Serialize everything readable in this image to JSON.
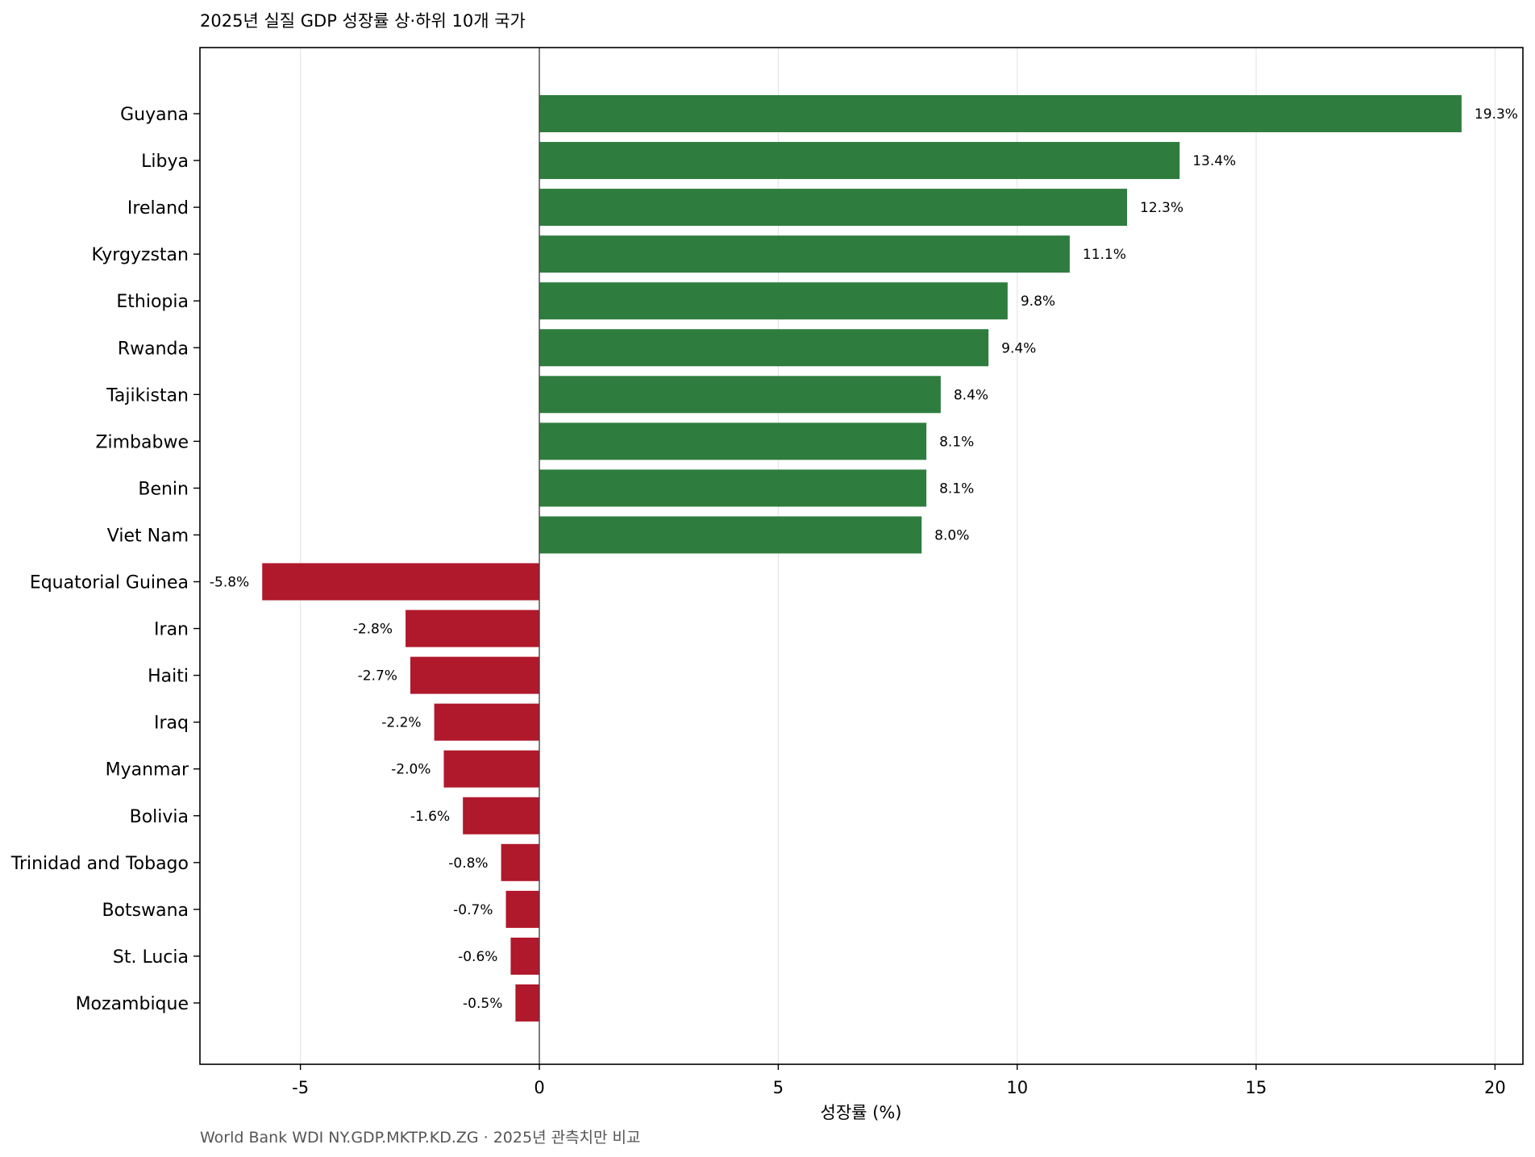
{
  "chart_data": {
    "type": "bar",
    "orientation": "horizontal",
    "title": "2025년 실질 GDP 성장률 상·하위 10개 국가",
    "xlabel": "성장률 (%)",
    "ylabel": "",
    "xlim": [
      -7,
      20.6
    ],
    "xticks": [
      -5,
      0,
      5,
      10,
      15,
      20
    ],
    "xtick_labels": [
      "-5",
      "0",
      "5",
      "10",
      "15",
      "20"
    ],
    "grid": "vertical",
    "source": "World Bank WDI NY.GDP.MKTP.KD.ZG · 2025년 관측치만 비교",
    "colors": {
      "positive": "#2e7d3e",
      "negative": "#b0182c",
      "grid": "#e6e6e6",
      "zero_line": "#444444"
    },
    "categories": [
      "Guyana",
      "Libya",
      "Ireland",
      "Kyrgyzstan",
      "Ethiopia",
      "Rwanda",
      "Tajikistan",
      "Zimbabwe",
      "Benin",
      "Viet Nam",
      "Equatorial Guinea",
      "Iran",
      "Haiti",
      "Iraq",
      "Myanmar",
      "Bolivia",
      "Trinidad and Tobago",
      "Botswana",
      "St. Lucia",
      "Mozambique"
    ],
    "values": [
      19.3,
      13.4,
      12.3,
      11.1,
      9.8,
      9.4,
      8.4,
      8.1,
      8.1,
      8.0,
      -5.8,
      -2.8,
      -2.7,
      -2.2,
      -2.0,
      -1.6,
      -0.8,
      -0.7,
      -0.6,
      -0.5
    ],
    "value_labels": [
      "19.3%",
      "13.4%",
      "12.3%",
      "11.1%",
      "9.8%",
      "9.4%",
      "8.4%",
      "8.1%",
      "8.1%",
      "8.0%",
      "-5.8%",
      "-2.8%",
      "-2.7%",
      "-2.2%",
      "-2.0%",
      "-1.6%",
      "-0.8%",
      "-0.7%",
      "-0.6%",
      "-0.5%"
    ]
  }
}
